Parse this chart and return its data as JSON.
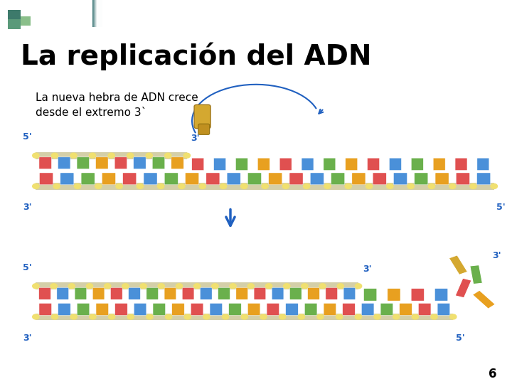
{
  "title": "La replicación del ADN",
  "subtitle": "La nueva hebra de ADN crece\ndesde el extremo 3`",
  "page_number": "6",
  "title_fontsize": 28,
  "subtitle_fontsize": 11,
  "bg_color": "#ffffff",
  "title_color": "#000000",
  "subtitle_color": "#000000",
  "header_teal": "#2d6b6b",
  "header_square1": "#3d7a6b",
  "header_square2": "#5a9a7a",
  "dna_colors": [
    "#e05050",
    "#4a90d9",
    "#6ab04c",
    "#e8a020"
  ],
  "backbone_color": "#d4cfa8",
  "ball_color": "#f0e070",
  "arrow_color": "#2060c0",
  "label_color": "#2060c0",
  "nuc_color1": "#d4a830",
  "nuc_color2": "#6ab04c",
  "nuc_color3": "#e05050",
  "nuc_color4": "#e8a020"
}
